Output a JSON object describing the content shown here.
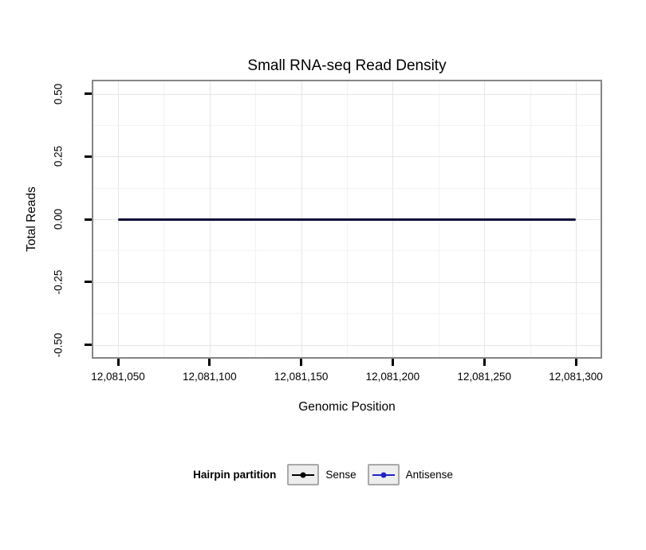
{
  "chart_data": {
    "type": "line",
    "title": "Small RNA-seq Read Density",
    "xlabel": "Genomic Position",
    "ylabel": "Total Reads",
    "x_tick_labels": [
      "12,081,050",
      "12,081,100",
      "12,081,150",
      "12,081,200",
      "12,081,250",
      "12,081,300"
    ],
    "x_tick_values": [
      12081050,
      12081100,
      12081150,
      12081200,
      12081250,
      12081300
    ],
    "y_tick_labels": [
      "0.50",
      "0.25",
      "0.00",
      "-0.25",
      "-0.50"
    ],
    "y_tick_values": [
      0.5,
      0.25,
      0,
      -0.25,
      -0.5
    ],
    "xlim": [
      12081035,
      12081315
    ],
    "ylim": [
      -0.5,
      0.5
    ],
    "grid": true,
    "plot_line_color": "#0b0b38",
    "series": [
      {
        "name": "Sense",
        "color": "#000000",
        "x": [
          12081050,
          12081300
        ],
        "y": [
          0,
          0
        ]
      },
      {
        "name": "Antisense",
        "color": "#2121c8",
        "x": [
          12081050,
          12081300
        ],
        "y": [
          0,
          0
        ]
      }
    ],
    "legend": {
      "title": "Hairpin partition",
      "position": "bottom",
      "entries": [
        {
          "label": "Sense",
          "color": "#000000"
        },
        {
          "label": "Antisense",
          "color": "#2121c8"
        }
      ]
    }
  }
}
